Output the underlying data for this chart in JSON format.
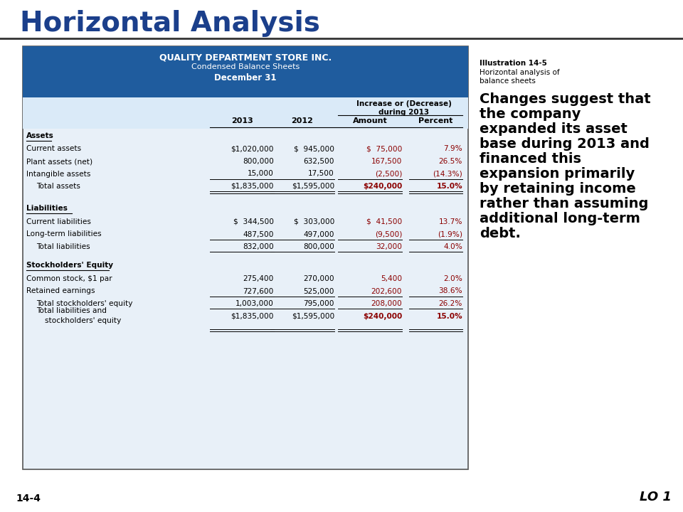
{
  "title": "Horizontal Analysis",
  "page_num": "14-4",
  "lo": "LO 1",
  "illus_line1": "Illustration 14-5",
  "illus_line2": "Horizontal analysis of",
  "illus_line3": "balance sheets",
  "commentary": "Changes suggest that\nthe company\nexpanded its asset\nbase during 2013 and\nfinanced this\nexpansion primarily\nby retaining income\nrather than assuming\nadditional long-term\ndebt.",
  "table_title_line1": "QUALITY DEPARTMENT STORE INC.",
  "table_title_line2": "Condensed Balance Sheets",
  "table_title_line3": "December 31",
  "header_bg": "#1F5C9E",
  "table_bg_light": "#E8F0F8",
  "col_header_bg": "#D0DFF0",
  "red_color": "#8B0000",
  "black_color": "#000000",
  "sections": [
    {
      "section_label": "Assets",
      "rows": [
        {
          "label": "Current assets",
          "v2013": "$1,020,000",
          "v2012": "$  945,000",
          "amount": "$  75,000",
          "pct": "7.9%",
          "indent": 0,
          "underline": false,
          "double_under": false,
          "amount_bold": false
        },
        {
          "label": "Plant assets (net)",
          "v2013": "800,000",
          "v2012": "632,500",
          "amount": "167,500",
          "pct": "26.5%",
          "indent": 0,
          "underline": false,
          "double_under": false,
          "amount_bold": false
        },
        {
          "label": "Intangible assets",
          "v2013": "15,000",
          "v2012": "17,500",
          "amount": "(2,500)",
          "pct": "(14.3%)",
          "indent": 0,
          "underline": true,
          "double_under": false,
          "amount_bold": false
        },
        {
          "label": "Total assets",
          "v2013": "$1,835,000",
          "v2012": "$1,595,000",
          "amount": "$240,000",
          "pct": "15.0%",
          "indent": 1,
          "underline": true,
          "double_under": true,
          "amount_bold": true
        }
      ]
    },
    {
      "section_label": "Liabilities",
      "rows": [
        {
          "label": "Current liabilities",
          "v2013": "$  344,500",
          "v2012": "$  303,000",
          "amount": "$  41,500",
          "pct": "13.7%",
          "indent": 0,
          "underline": false,
          "double_under": false,
          "amount_bold": false
        },
        {
          "label": "Long-term liabilities",
          "v2013": "487,500",
          "v2012": "497,000",
          "amount": "(9,500)",
          "pct": "(1.9%)",
          "indent": 0,
          "underline": true,
          "double_under": false,
          "amount_bold": false
        },
        {
          "label": "Total liabilities",
          "v2013": "832,000",
          "v2012": "800,000",
          "amount": "32,000",
          "pct": "4.0%",
          "indent": 1,
          "underline": true,
          "double_under": false,
          "amount_bold": false
        }
      ]
    },
    {
      "section_label": "Stockholders' Equity",
      "rows": [
        {
          "label": "Common stock, $1 par",
          "v2013": "275,400",
          "v2012": "270,000",
          "amount": "5,400",
          "pct": "2.0%",
          "indent": 0,
          "underline": false,
          "double_under": false,
          "amount_bold": false
        },
        {
          "label": "Retained earnings",
          "v2013": "727,600",
          "v2012": "525,000",
          "amount": "202,600",
          "pct": "38.6%",
          "indent": 0,
          "underline": true,
          "double_under": false,
          "amount_bold": false
        },
        {
          "label": "Total stockholders' equity",
          "v2013": "1,003,000",
          "v2012": "795,000",
          "amount": "208,000",
          "pct": "26.2%",
          "indent": 1,
          "underline": true,
          "double_under": false,
          "amount_bold": false
        },
        {
          "label": "Total liabilities and\nstockholders' equity",
          "v2013": "$1,835,000",
          "v2012": "$1,595,000",
          "amount": "$240,000",
          "pct": "15.0%",
          "indent": 1,
          "underline": true,
          "double_under": true,
          "amount_bold": true
        }
      ]
    }
  ]
}
